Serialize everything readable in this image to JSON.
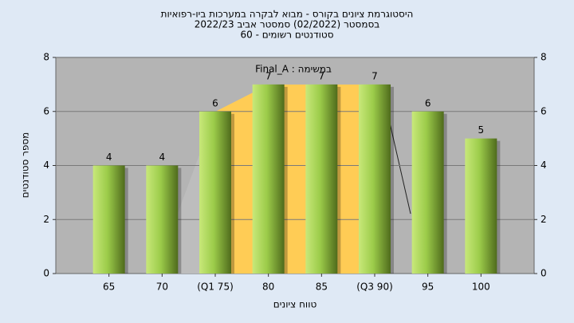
{
  "chart_data": {
    "type": "bar",
    "title_lines": [
      "היסטוגרמת ציונים בקורס - מבוא לבקרה במערכות ביו-רפואיות",
      "בסמסטר  (02/2022)  סמסטר אביב 2022/23",
      "סטודנטים רשומים - 60"
    ],
    "annotation": "במשימה : Final_A",
    "x_label": "טווח ציונים",
    "y_label": "מספר סטודנטים",
    "categories": [
      "65",
      "70",
      "(Q1 75)",
      "80",
      "85",
      "(Q3 90)",
      "95",
      "100"
    ],
    "values": [
      4,
      4,
      6,
      7,
      7,
      7,
      6,
      5
    ],
    "color": "#9ccc4a",
    "ylim": [
      0,
      8
    ],
    "yticks": [
      0,
      2,
      4,
      6,
      8
    ],
    "y2lim": [
      0,
      8
    ],
    "y2ticks": [
      0,
      2,
      4,
      6,
      8
    ],
    "grid": true
  }
}
